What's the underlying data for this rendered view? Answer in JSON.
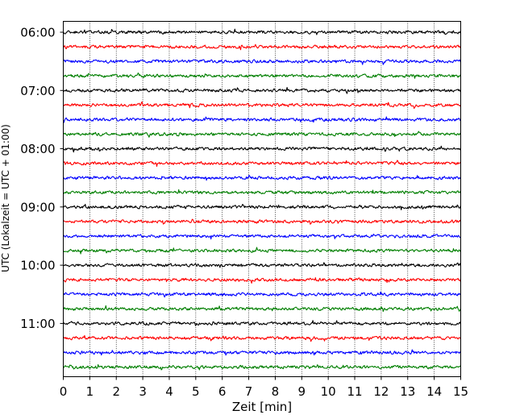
{
  "chart_data": {
    "type": "line",
    "title": "",
    "xlabel": "Zeit  [min]",
    "ylabel": "UTC (Lokalzeit = UTC + 01:00)",
    "xlim": [
      0,
      15
    ],
    "x_ticks": [
      "0",
      "1",
      "2",
      "3",
      "4",
      "5",
      "6",
      "7",
      "8",
      "9",
      "10",
      "11",
      "12",
      "13",
      "14",
      "15"
    ],
    "y_tick_labels": [
      "06:00",
      "07:00",
      "08:00",
      "09:00",
      "10:00",
      "11:00"
    ],
    "grid": "vertical dotted lines at each minute",
    "legend": "none",
    "trace_interval_minutes": 15,
    "trace_color_cycle": [
      "#000000",
      "#ff0000",
      "#0000ff",
      "#007f00"
    ],
    "trace_start_times": [
      "06:00",
      "06:15",
      "06:30",
      "06:45",
      "07:00",
      "07:15",
      "07:30",
      "07:45",
      "08:00",
      "08:15",
      "08:30",
      "08:45",
      "09:00",
      "09:15",
      "09:30",
      "09:45",
      "10:00",
      "10:15",
      "10:30",
      "10:45",
      "11:00",
      "11:15",
      "11:30",
      "11:45"
    ]
  }
}
